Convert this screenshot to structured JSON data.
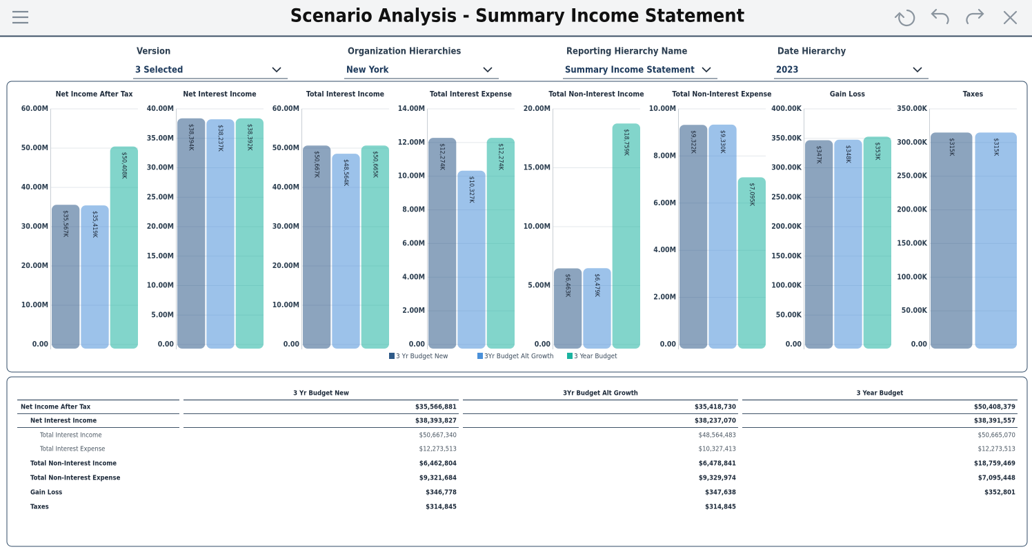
{
  "header": {
    "title": "Scenario Analysis - Summary Income Statement"
  },
  "filters": [
    {
      "label": "Version",
      "value": "3 Selected"
    },
    {
      "label": "Organization Hierarchies",
      "value": "New York"
    },
    {
      "label": "Reporting Hierarchy Name",
      "value": "Summary Income Statement"
    },
    {
      "label": "Date Hierarchy",
      "value": "2023"
    }
  ],
  "series": [
    {
      "name": "3 Yr Budget New",
      "color": "#2e5a88"
    },
    {
      "name": "3Yr Budget Alt Growth",
      "color": "#4a90d9"
    },
    {
      "name": "3 Year Budget",
      "color": "#1bb3a0"
    }
  ],
  "chart_data": [
    {
      "type": "bar",
      "title": "Net Income After Tax",
      "values": [
        35566881,
        35418730,
        50408379
      ],
      "value_labels": [
        "$35,567K",
        "$35,419K",
        "$50,408K"
      ],
      "ylim": [
        0,
        60000000
      ],
      "yticks": [
        {
          "value": 0,
          "label": "0.00"
        },
        {
          "value": 10000000,
          "label": "10.00M"
        },
        {
          "value": 20000000,
          "label": "20.00M"
        },
        {
          "value": 30000000,
          "label": "30.00M"
        },
        {
          "value": 40000000,
          "label": "40.00M"
        },
        {
          "value": 50000000,
          "label": "50.00M"
        },
        {
          "value": 60000000,
          "label": "60.00M"
        }
      ],
      "grid": true
    },
    {
      "type": "bar",
      "title": "Net Interest Income",
      "values": [
        38393827,
        38237070,
        38391557
      ],
      "value_labels": [
        "$38,394K",
        "$38,237K",
        "$38,392K"
      ],
      "ylim": [
        0,
        40000000
      ],
      "yticks": [
        {
          "value": 0,
          "label": "0.00"
        },
        {
          "value": 5000000,
          "label": "5.00M"
        },
        {
          "value": 10000000,
          "label": "10.00M"
        },
        {
          "value": 15000000,
          "label": "15.00M"
        },
        {
          "value": 20000000,
          "label": "20.00M"
        },
        {
          "value": 25000000,
          "label": "25.00M"
        },
        {
          "value": 30000000,
          "label": "30.00M"
        },
        {
          "value": 35000000,
          "label": "35.00M"
        },
        {
          "value": 40000000,
          "label": "40.00M"
        }
      ],
      "grid": true
    },
    {
      "type": "bar",
      "title": "Total Interest Income",
      "values": [
        50667340,
        48564483,
        50665070
      ],
      "value_labels": [
        "$50,667K",
        "$48,564K",
        "$50,665K"
      ],
      "ylim": [
        0,
        60000000
      ],
      "yticks": [
        {
          "value": 0,
          "label": "0.00"
        },
        {
          "value": 10000000,
          "label": "10.00M"
        },
        {
          "value": 20000000,
          "label": "20.00M"
        },
        {
          "value": 30000000,
          "label": "30.00M"
        },
        {
          "value": 40000000,
          "label": "40.00M"
        },
        {
          "value": 50000000,
          "label": "50.00M"
        },
        {
          "value": 60000000,
          "label": "60.00M"
        }
      ],
      "grid": true
    },
    {
      "type": "bar",
      "title": "Total Interest Expense",
      "values": [
        12273513,
        10327413,
        12273513
      ],
      "value_labels": [
        "$12,274K",
        "$10,327K",
        "$12,274K"
      ],
      "ylim": [
        0,
        14000000
      ],
      "yticks": [
        {
          "value": 0,
          "label": "0.00"
        },
        {
          "value": 2000000,
          "label": "2.00M"
        },
        {
          "value": 4000000,
          "label": "4.00M"
        },
        {
          "value": 6000000,
          "label": "6.00M"
        },
        {
          "value": 8000000,
          "label": "8.00M"
        },
        {
          "value": 10000000,
          "label": "10.00M"
        },
        {
          "value": 12000000,
          "label": "12.00M"
        },
        {
          "value": 14000000,
          "label": "14.00M"
        }
      ],
      "grid": true
    },
    {
      "type": "bar",
      "title": "Total Non-Interest Income",
      "values": [
        6462804,
        6478841,
        18759469
      ],
      "value_labels": [
        "$6,463K",
        "$6,479K",
        "$18,759K"
      ],
      "ylim": [
        0,
        20000000
      ],
      "yticks": [
        {
          "value": 0,
          "label": "0.00"
        },
        {
          "value": 5000000,
          "label": "5.00M"
        },
        {
          "value": 10000000,
          "label": "10.00M"
        },
        {
          "value": 15000000,
          "label": "15.00M"
        },
        {
          "value": 20000000,
          "label": "20.00M"
        }
      ],
      "grid": true
    },
    {
      "type": "bar",
      "title": "Total Non-Interest Expense",
      "values": [
        9321684,
        9329974,
        7095448
      ],
      "value_labels": [
        "$9,322K",
        "$9,330K",
        "$7,095K"
      ],
      "ylim": [
        0,
        10000000
      ],
      "yticks": [
        {
          "value": 0,
          "label": "0.00"
        },
        {
          "value": 2000000,
          "label": "2.00M"
        },
        {
          "value": 4000000,
          "label": "4.00M"
        },
        {
          "value": 6000000,
          "label": "6.00M"
        },
        {
          "value": 8000000,
          "label": "8.00M"
        },
        {
          "value": 10000000,
          "label": "10.00M"
        }
      ],
      "grid": true
    },
    {
      "type": "bar",
      "title": "Gain Loss",
      "values": [
        346778,
        347638,
        352801
      ],
      "value_labels": [
        "$347K",
        "$348K",
        "$353K"
      ],
      "ylim": [
        0,
        400000
      ],
      "yticks": [
        {
          "value": 0,
          "label": "0.00"
        },
        {
          "value": 50000,
          "label": "50.00K"
        },
        {
          "value": 100000,
          "label": "100.00K"
        },
        {
          "value": 150000,
          "label": "150.00K"
        },
        {
          "value": 200000,
          "label": "200.00K"
        },
        {
          "value": 250000,
          "label": "250.00K"
        },
        {
          "value": 300000,
          "label": "300.00K"
        },
        {
          "value": 350000,
          "label": "350.00K"
        },
        {
          "value": 400000,
          "label": "400.00K"
        }
      ],
      "grid": true
    },
    {
      "type": "bar",
      "title": "Taxes",
      "values": [
        314845,
        314845
      ],
      "value_labels": [
        "$315K",
        "$315K"
      ],
      "ylim": [
        0,
        350000
      ],
      "yticks": [
        {
          "value": 0,
          "label": "0.00"
        },
        {
          "value": 50000,
          "label": "50.00K"
        },
        {
          "value": 100000,
          "label": "100.00K"
        },
        {
          "value": 150000,
          "label": "150.00K"
        },
        {
          "value": 200000,
          "label": "200.00K"
        },
        {
          "value": 250000,
          "label": "250.00K"
        },
        {
          "value": 300000,
          "label": "300.00K"
        },
        {
          "value": 350000,
          "label": "350.00K"
        }
      ],
      "grid": true
    }
  ],
  "table": {
    "columns": [
      "3 Yr Budget New",
      "3Yr Budget Alt Growth",
      "3 Year Budget"
    ],
    "rows": [
      [
        "Net Income After Tax",
        "$35,566,881",
        "$35,418,730",
        "$50,408,379"
      ],
      [
        "Net Interest Income",
        "$38,393,827",
        "$38,237,070",
        "$38,391,557"
      ],
      [
        "Total Interest Income",
        "$50,667,340",
        "$48,564,483",
        "$50,665,070"
      ],
      [
        "Total Interest Expense",
        "$12,273,513",
        "$10,327,413",
        "$12,273,513"
      ],
      [
        "Total Non-Interest Income",
        "$6,462,804",
        "$6,478,841",
        "$18,759,469"
      ],
      [
        "Total Non-Interest Expense",
        "$9,321,684",
        "$9,329,974",
        "$7,095,448"
      ],
      [
        "Gain Loss",
        "$346,778",
        "$347,638",
        "$352,801"
      ],
      [
        "Taxes",
        "$314,845",
        "$314,845",
        null
      ]
    ]
  }
}
